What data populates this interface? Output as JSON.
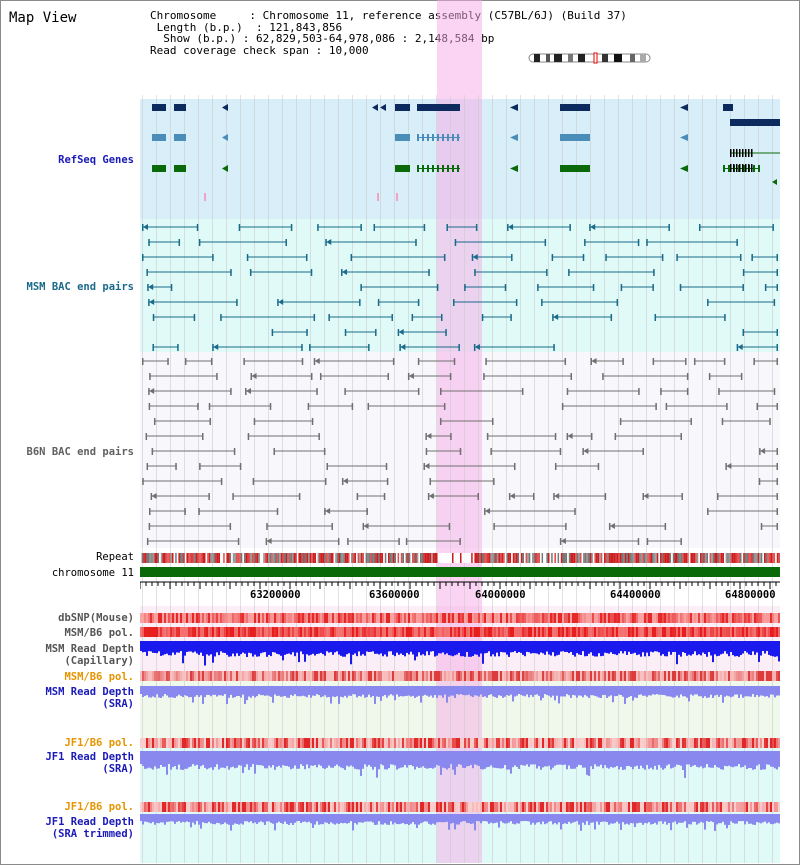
{
  "view": {
    "title": "Map View"
  },
  "header": {
    "chromosome_label": "Chromosome",
    "chromosome_value": "Chromosome 11, reference assembly (C57BL/6J) (Build 37)",
    "length_label": "Length (b.p.)",
    "length_value": "121,843,856",
    "show_label": "Show (b.p.)",
    "show_value": "62,829,503-64,978,086 : 2,148,584 bp",
    "span_label": "Read coverage check span",
    "span_value": "10,000"
  },
  "tracks": {
    "refseq": "RefSeq Genes",
    "msm_bac": "MSM BAC end pairs",
    "b6n_bac": "B6N BAC end pairs",
    "repeat": "Repeat",
    "chromosome": "chromosome 11",
    "dbsnp": "dbSNP(Mouse)",
    "msm_b6_pol": "MSM/B6 pol.",
    "msm_read_depth_cap_1": "MSM Read Depth",
    "msm_read_depth_cap_2": "(Capillary)",
    "msm_b6_pol_2": "MSM/B6 pol.",
    "msm_read_depth_sra_1": "MSM Read Depth",
    "msm_read_depth_sra_2": "(SRA)",
    "jf1_b6_pol": "JF1/B6 pol.",
    "jf1_read_depth_sra_1": "JF1 Read Depth",
    "jf1_read_depth_sra_2": "(SRA)",
    "jf1_b6_pol_2": "JF1/B6 pol.",
    "jf1_read_depth_trim_1": "JF1 Read Depth",
    "jf1_read_depth_trim_2": "(SRA trimmed)"
  },
  "axis": {
    "ticks": [
      "63200000",
      "63600000",
      "64000000",
      "64400000",
      "64800000"
    ]
  },
  "colors": {
    "refseq_bg": "#d8eef8",
    "msm_bg": "#e0faf8",
    "gene_dark": "#0d2a5e",
    "gene_mid": "#4a8db8",
    "gene_green": "#0a6a0a",
    "msm_bac": "#1a6a8a",
    "b6n_bac": "#707070",
    "chromosome": "#0a6a0a",
    "highlight": "#f6aae6",
    "depth_blue": "#1a1aee",
    "depth_light": "#8888ee",
    "label_blue": "#1a1ab8",
    "label_orange": "#e69500",
    "label_teal": "#1a6a8a"
  }
}
